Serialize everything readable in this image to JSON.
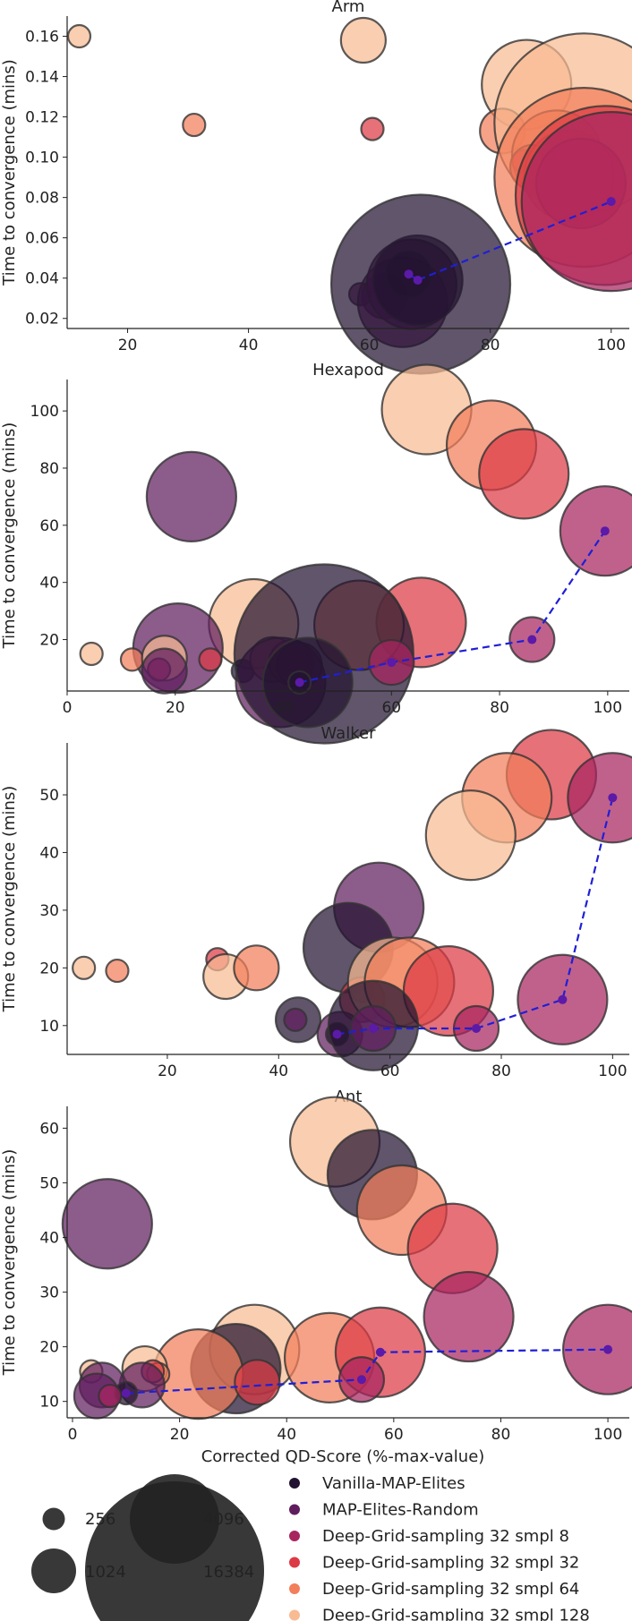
{
  "colors": {
    "Vanilla-MAP-Elites": "#221331",
    "MAP-Elites-Random": "#5f1d5e",
    "Deep-Grid-sampling 32 smpl 8": "#a8245f",
    "Deep-Grid-sampling 32 smpl 32": "#dc3a45",
    "Deep-Grid-sampling 32 smpl 64": "#f27e5a",
    "Deep-Grid-sampling 32 smpl 128": "#f8bb93",
    "frontier": "#1f1fd6",
    "frontier_point": "#5b1aa8"
  },
  "xlabel": "Corrected QD-Score (%-max-value)",
  "legend": {
    "sizes": [
      "256",
      "1024",
      "4096",
      "16384"
    ],
    "series": [
      "Vanilla-MAP-Elites",
      "MAP-Elites-Random",
      "Deep-Grid-sampling 32 smpl 8",
      "Deep-Grid-sampling 32 smpl 32",
      "Deep-Grid-sampling 32 smpl 64",
      "Deep-Grid-sampling 32 smpl 128"
    ]
  },
  "chart_data": [
    {
      "type": "scatter",
      "title": "Arm",
      "ylabel": "Time to convergence (mins)",
      "xlim": [
        10,
        103
      ],
      "ylim": [
        0.015,
        0.17
      ],
      "xticks": [
        20,
        40,
        60,
        80,
        100
      ],
      "yticks": [
        0.02,
        0.04,
        0.06,
        0.08,
        0.1,
        0.12,
        0.14,
        0.16
      ],
      "yticklabels": [
        "0.02",
        "0.04",
        "0.06",
        "0.08",
        "0.10",
        "0.12",
        "0.14",
        "0.16"
      ],
      "points": [
        {
          "series": "Deep-Grid-sampling 32 smpl 128",
          "size": 256,
          "x": 12,
          "y": 0.16
        },
        {
          "series": "Deep-Grid-sampling 32 smpl 64",
          "size": 256,
          "x": 31,
          "y": 0.116
        },
        {
          "series": "Deep-Grid-sampling 32 smpl 128",
          "size": 1024,
          "x": 59,
          "y": 0.158
        },
        {
          "series": "Deep-Grid-sampling 32 smpl 32",
          "size": 256,
          "x": 60.5,
          "y": 0.114
        },
        {
          "series": "Deep-Grid-sampling 32 smpl 128",
          "size": 4096,
          "x": 86,
          "y": 0.136
        },
        {
          "series": "Deep-Grid-sampling 32 smpl 64",
          "size": 1024,
          "x": 82,
          "y": 0.113
        },
        {
          "series": "Deep-Grid-sampling 32 smpl 128",
          "size": 16384,
          "x": 95.5,
          "y": 0.117
        },
        {
          "series": "Deep-Grid-sampling 32 smpl 64",
          "size": 4096,
          "x": 91,
          "y": 0.101
        },
        {
          "series": "Deep-Grid-sampling 32 smpl 8",
          "size": 256,
          "x": 85.5,
          "y": 0.098
        },
        {
          "series": "Deep-Grid-sampling 32 smpl 32",
          "size": 1024,
          "x": 87,
          "y": 0.095
        },
        {
          "series": "Deep-Grid-sampling 32 smpl 32",
          "size": 4096,
          "x": 93,
          "y": 0.091
        },
        {
          "series": "Deep-Grid-sampling 32 smpl 64",
          "size": 16384,
          "x": 95.5,
          "y": 0.09
        },
        {
          "series": "Deep-Grid-sampling 32 smpl 8",
          "size": 4096,
          "x": 95,
          "y": 0.087
        },
        {
          "series": "Deep-Grid-sampling 32 smpl 32",
          "size": 16384,
          "x": 99,
          "y": 0.081
        },
        {
          "series": "Deep-Grid-sampling 32 smpl 8",
          "size": 16384,
          "x": 100,
          "y": 0.078
        },
        {
          "series": "MAP-Elites-Random",
          "size": 256,
          "x": 58.5,
          "y": 0.032
        },
        {
          "series": "MAP-Elites-Random",
          "size": 1024,
          "x": 62.5,
          "y": 0.031
        },
        {
          "series": "MAP-Elites-Random",
          "size": 4096,
          "x": 65.5,
          "y": 0.028
        },
        {
          "series": "MAP-Elites-Random",
          "size": 4096,
          "x": 67,
          "y": 0.037
        },
        {
          "series": "Vanilla-MAP-Elites",
          "size": 1024,
          "x": 66.5,
          "y": 0.042
        },
        {
          "series": "Vanilla-MAP-Elites",
          "size": 4096,
          "x": 68,
          "y": 0.039
        },
        {
          "series": "Vanilla-MAP-Elites",
          "size": 16384,
          "x": 68.5,
          "y": 0.037
        }
      ],
      "frontier": {
        "x": [
          66.5,
          68,
          100
        ],
        "y": [
          0.042,
          0.039,
          0.078
        ]
      }
    },
    {
      "type": "scatter",
      "title": "Hexapod",
      "ylabel": "Time to convergence (mins)",
      "xlim": [
        0,
        104
      ],
      "ylim": [
        2,
        111
      ],
      "xticks": [
        0,
        20,
        40,
        60,
        80,
        100
      ],
      "yticks": [
        20,
        40,
        60,
        80,
        100
      ],
      "yticklabels": [
        "20",
        "40",
        "60",
        "80",
        "100"
      ],
      "points": [
        {
          "series": "Deep-Grid-sampling 32 smpl 128",
          "size": 4096,
          "x": 66.5,
          "y": 100.5
        },
        {
          "series": "Deep-Grid-sampling 32 smpl 64",
          "size": 4096,
          "x": 78.5,
          "y": 88
        },
        {
          "series": "Deep-Grid-sampling 32 smpl 32",
          "size": 4096,
          "x": 84.5,
          "y": 78
        },
        {
          "series": "MAP-Elites-Random",
          "size": 4096,
          "x": 23,
          "y": 70
        },
        {
          "series": "Deep-Grid-sampling 32 smpl 8",
          "size": 4096,
          "x": 99.5,
          "y": 58
        },
        {
          "series": "Deep-Grid-sampling 32 smpl 8",
          "size": 1024,
          "x": 86,
          "y": 20
        },
        {
          "series": "Deep-Grid-sampling 32 smpl 32",
          "size": 4096,
          "x": 65.5,
          "y": 26
        },
        {
          "series": "Deep-Grid-sampling 32 smpl 64",
          "size": 4096,
          "x": 54,
          "y": 25
        },
        {
          "series": "Deep-Grid-sampling 32 smpl 128",
          "size": 4096,
          "x": 34.5,
          "y": 25.5
        },
        {
          "series": "MAP-Elites-Random",
          "size": 4096,
          "x": 20.5,
          "y": 17
        },
        {
          "series": "Deep-Grid-sampling 32 smpl 128",
          "size": 256,
          "x": 4.5,
          "y": 15
        },
        {
          "series": "Deep-Grid-sampling 32 smpl 64",
          "size": 256,
          "x": 12,
          "y": 13
        },
        {
          "series": "Deep-Grid-sampling 32 smpl 128",
          "size": 1024,
          "x": 18,
          "y": 13.5
        },
        {
          "series": "Deep-Grid-sampling 32 smpl 8",
          "size": 256,
          "x": 17,
          "y": 9.5
        },
        {
          "series": "MAP-Elites-Random",
          "size": 1024,
          "x": 18,
          "y": 9
        },
        {
          "series": "Deep-Grid-sampling 32 smpl 32",
          "size": 256,
          "x": 26.5,
          "y": 13
        },
        {
          "series": "Vanilla-MAP-Elites",
          "size": 256,
          "x": 32.5,
          "y": 9
        },
        {
          "series": "Deep-Grid-sampling 32 smpl 64",
          "size": 1024,
          "x": 38,
          "y": 13
        },
        {
          "series": "Deep-Grid-sampling 32 smpl 32",
          "size": 1024,
          "x": 41.5,
          "y": 12
        },
        {
          "series": "Deep-Grid-sampling 32 smpl 8",
          "size": 1024,
          "x": 43,
          "y": 11
        },
        {
          "series": "MAP-Elites-Random",
          "size": 4096,
          "x": 39.5,
          "y": 5
        },
        {
          "series": "Vanilla-MAP-Elites",
          "size": 16384,
          "x": 47.5,
          "y": 15
        },
        {
          "series": "Vanilla-MAP-Elites",
          "size": 4096,
          "x": 44.5,
          "y": 5
        },
        {
          "series": "Deep-Grid-sampling 32 smpl 8",
          "size": 1024,
          "x": 60,
          "y": 12
        },
        {
          "series": "Vanilla-MAP-Elites",
          "size": 256,
          "x": 43,
          "y": 5
        }
      ],
      "frontier": {
        "x": [
          43,
          60,
          86,
          99.5
        ],
        "y": [
          5,
          12,
          20,
          58
        ]
      }
    },
    {
      "type": "scatter",
      "title": "Walker",
      "ylabel": "Time to convergence (mins)",
      "xlim": [
        2,
        103
      ],
      "ylim": [
        5,
        59
      ],
      "xticks": [
        20,
        40,
        60,
        80,
        100
      ],
      "yticks": [
        10,
        20,
        30,
        40,
        50
      ],
      "yticklabels": [
        "10",
        "20",
        "30",
        "40",
        "50"
      ],
      "points": [
        {
          "series": "Deep-Grid-sampling 32 smpl 32",
          "size": 4096,
          "x": 89,
          "y": 53.5
        },
        {
          "series": "Deep-Grid-sampling 32 smpl 64",
          "size": 4096,
          "x": 81,
          "y": 49.5
        },
        {
          "series": "Deep-Grid-sampling 32 smpl 8",
          "size": 4096,
          "x": 100,
          "y": 49.5
        },
        {
          "series": "Deep-Grid-sampling 32 smpl 128",
          "size": 4096,
          "x": 74.5,
          "y": 43
        },
        {
          "series": "MAP-Elites-Random",
          "size": 4096,
          "x": 58,
          "y": 30.5
        },
        {
          "series": "Vanilla-MAP-Elites",
          "size": 4096,
          "x": 52.5,
          "y": 23.5
        },
        {
          "series": "Deep-Grid-sampling 32 smpl 128",
          "size": 256,
          "x": 5,
          "y": 20
        },
        {
          "series": "Deep-Grid-sampling 32 smpl 64",
          "size": 256,
          "x": 11,
          "y": 19.5
        },
        {
          "series": "Deep-Grid-sampling 32 smpl 32",
          "size": 256,
          "x": 29,
          "y": 21.5
        },
        {
          "series": "Deep-Grid-sampling 32 smpl 128",
          "size": 1024,
          "x": 30.5,
          "y": 18.5
        },
        {
          "series": "Deep-Grid-sampling 32 smpl 64",
          "size": 1024,
          "x": 36,
          "y": 20
        },
        {
          "series": "Deep-Grid-sampling 32 smpl 8",
          "size": 256,
          "x": 55,
          "y": 16
        },
        {
          "series": "Deep-Grid-sampling 32 smpl 32",
          "size": 1024,
          "x": 55,
          "y": 14.5
        },
        {
          "series": "Deep-Grid-sampling 32 smpl 128",
          "size": 4096,
          "x": 60.5,
          "y": 17.5
        },
        {
          "series": "Deep-Grid-sampling 32 smpl 64",
          "size": 4096,
          "x": 63.5,
          "y": 17.5
        },
        {
          "series": "Deep-Grid-sampling 32 smpl 32",
          "size": 4096,
          "x": 70.5,
          "y": 16
        },
        {
          "series": "Vanilla-MAP-Elites",
          "size": 1024,
          "x": 43.5,
          "y": 11
        },
        {
          "series": "MAP-Elites-Random",
          "size": 256,
          "x": 43,
          "y": 11
        },
        {
          "series": "MAP-Elites-Random",
          "size": 1024,
          "x": 51,
          "y": 8.5
        },
        {
          "series": "Vanilla-MAP-Elites",
          "size": 256,
          "x": 50.5,
          "y": 8.5
        },
        {
          "series": "Vanilla-MAP-Elites",
          "size": 4096,
          "x": 57,
          "y": 10
        },
        {
          "series": "MAP-Elites-Random",
          "size": 1024,
          "x": 57,
          "y": 9.5
        },
        {
          "series": "Deep-Grid-sampling 32 smpl 8",
          "size": 1024,
          "x": 75.5,
          "y": 9.5
        },
        {
          "series": "Deep-Grid-sampling 32 smpl 8",
          "size": 4096,
          "x": 91,
          "y": 14.5
        }
      ],
      "frontier": {
        "x": [
          50.5,
          57,
          75.5,
          91,
          100
        ],
        "y": [
          8.5,
          9.5,
          9.5,
          14.5,
          49.5
        ]
      }
    },
    {
      "type": "scatter",
      "title": "Ant",
      "ylabel": "Time to convergence (mins)",
      "xlim": [
        -1,
        104
      ],
      "ylim": [
        7,
        64
      ],
      "xticks": [
        0,
        20,
        40,
        60,
        80,
        100
      ],
      "yticks": [
        10,
        20,
        30,
        40,
        50,
        60
      ],
      "yticklabels": [
        "10",
        "20",
        "30",
        "40",
        "50",
        "60"
      ],
      "xlabel": "Corrected QD-Score (%-max-value)",
      "points": [
        {
          "series": "Deep-Grid-sampling 32 smpl 128",
          "size": 4096,
          "x": 49,
          "y": 57.5
        },
        {
          "series": "Vanilla-MAP-Elites",
          "size": 4096,
          "x": 56,
          "y": 51.5
        },
        {
          "series": "Deep-Grid-sampling 32 smpl 64",
          "size": 4096,
          "x": 61.5,
          "y": 45
        },
        {
          "series": "MAP-Elites-Random",
          "size": 4096,
          "x": 6.5,
          "y": 42.5
        },
        {
          "series": "Deep-Grid-sampling 32 smpl 32",
          "size": 4096,
          "x": 71,
          "y": 38
        },
        {
          "series": "Deep-Grid-sampling 32 smpl 8",
          "size": 4096,
          "x": 74,
          "y": 25.5
        },
        {
          "series": "Deep-Grid-sampling 32 smpl 128",
          "size": 4096,
          "x": 34,
          "y": 19.5
        },
        {
          "series": "Deep-Grid-sampling 32 smpl 64",
          "size": 4096,
          "x": 48,
          "y": 18
        },
        {
          "series": "Deep-Grid-sampling 32 smpl 32",
          "size": 4096,
          "x": 57.5,
          "y": 19
        },
        {
          "series": "Deep-Grid-sampling 32 smpl 8",
          "size": 4096,
          "x": 100,
          "y": 19.5
        },
        {
          "series": "Vanilla-MAP-Elites",
          "size": 4096,
          "x": 30.5,
          "y": 16
        },
        {
          "series": "Deep-Grid-sampling 32 smpl 64",
          "size": 4096,
          "x": 23.5,
          "y": 15
        },
        {
          "series": "Deep-Grid-sampling 32 smpl 128",
          "size": 1024,
          "x": 13.5,
          "y": 16
        },
        {
          "series": "Deep-Grid-sampling 32 smpl 64",
          "size": 256,
          "x": 16,
          "y": 15
        },
        {
          "series": "Deep-Grid-sampling 32 smpl 32",
          "size": 256,
          "x": 15,
          "y": 15.5
        },
        {
          "series": "MAP-Elites-Random",
          "size": 1024,
          "x": 13,
          "y": 13
        },
        {
          "series": "Deep-Grid-sampling 32 smpl 128",
          "size": 256,
          "x": 3.5,
          "y": 15.5
        },
        {
          "series": "MAP-Elites-Random",
          "size": 1024,
          "x": 5.5,
          "y": 13
        },
        {
          "series": "MAP-Elites-Random",
          "size": 1024,
          "x": 4.5,
          "y": 11
        },
        {
          "series": "Vanilla-MAP-Elites",
          "size": 256,
          "x": 10,
          "y": 11.5
        },
        {
          "series": "Deep-Grid-sampling 32 smpl 8",
          "size": 256,
          "x": 7,
          "y": 11
        },
        {
          "series": "Deep-Grid-sampling 32 smpl 32",
          "size": 1024,
          "x": 34.5,
          "y": 13.5
        },
        {
          "series": "Deep-Grid-sampling 32 smpl 8",
          "size": 1024,
          "x": 54,
          "y": 14
        }
      ],
      "frontier": {
        "x": [
          10,
          54,
          57.5,
          100
        ],
        "y": [
          11.5,
          14,
          19,
          19.5
        ]
      }
    }
  ]
}
